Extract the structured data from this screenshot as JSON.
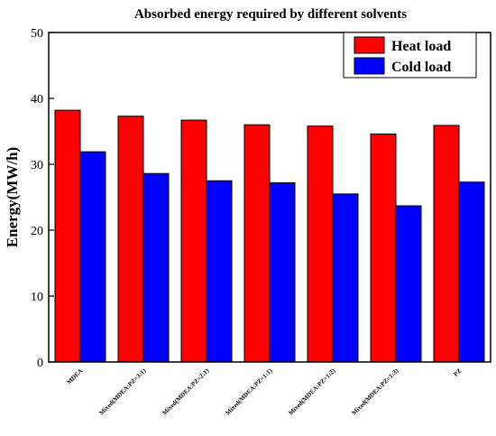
{
  "chart_data": {
    "type": "bar",
    "title": "Absorbed energy required by different solvents",
    "xlabel": "",
    "ylabel": "Energy(MW/h)",
    "ylim": [
      0,
      50
    ],
    "yticks": [
      0,
      10,
      20,
      30,
      40,
      50
    ],
    "grid": false,
    "legend_position": "top-right",
    "categories": [
      "MDEA",
      "Mixed(MDEA:PZ=3:1)",
      "Mixed(MDEA:PZ=2:1)",
      "Mixed(MDEA:PZ=1:1)",
      "Mixed(MDEA:PZ=1:2)",
      "Mixed(MDEA:PZ=1:3)",
      "PZ"
    ],
    "series": [
      {
        "name": "Heat load",
        "color": "#ff0000",
        "values": [
          38.2,
          37.3,
          36.7,
          36.0,
          35.8,
          34.6,
          35.9
        ]
      },
      {
        "name": "Cold load",
        "color": "#0000ff",
        "values": [
          31.9,
          28.6,
          27.5,
          27.2,
          25.5,
          23.7,
          27.3
        ]
      }
    ]
  }
}
